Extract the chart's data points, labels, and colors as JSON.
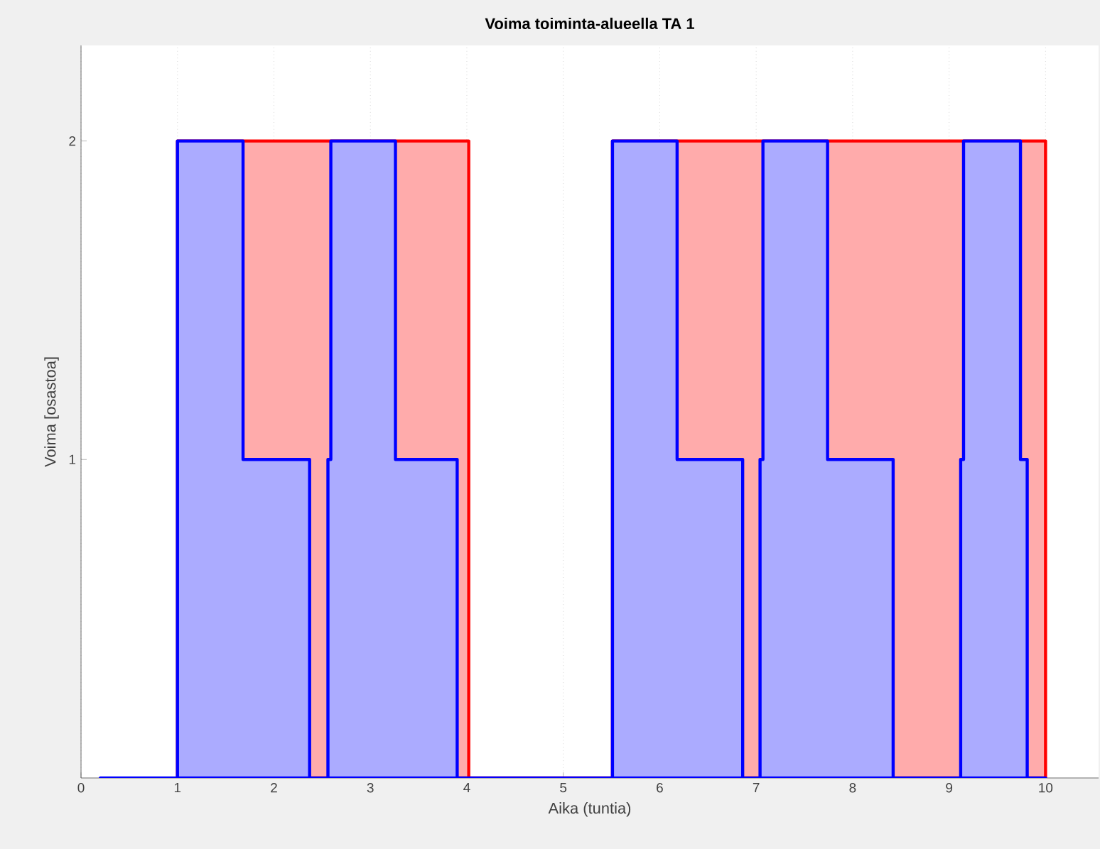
{
  "chart_data": {
    "type": "area",
    "title": "Voima toiminta-alueella TA 1",
    "xlabel": "Aika (tuntia)",
    "ylabel": "Voima [osastoa]",
    "xlim": [
      0,
      10.55
    ],
    "ylim": [
      0,
      2.3
    ],
    "xticks": [
      0,
      1,
      2,
      3,
      4,
      5,
      6,
      7,
      8,
      9,
      10
    ],
    "yticks": [
      1,
      2
    ],
    "grid": "x",
    "series": [
      {
        "color": "#ff0000",
        "x": [
          1.0,
          1.0,
          4.02,
          4.02,
          5.51,
          5.51,
          10.0,
          10.0
        ],
        "values": [
          0,
          2,
          2,
          0,
          0,
          2,
          2,
          0
        ]
      },
      {
        "color": "#0000ff",
        "x": [
          0.2,
          1.0,
          1.0,
          1.68,
          1.68,
          2.37,
          2.37,
          2.56,
          2.56,
          2.59,
          2.59,
          3.26,
          3.26,
          3.9,
          3.9,
          5.51,
          5.51,
          6.18,
          6.18,
          6.86,
          6.86,
          7.04,
          7.04,
          7.07,
          7.07,
          7.74,
          7.74,
          8.42,
          8.42,
          9.12,
          9.12,
          9.15,
          9.15,
          9.74,
          9.74,
          9.81,
          9.81,
          10.0
        ],
        "values": [
          0,
          0,
          2,
          2,
          1,
          1,
          0,
          0,
          1,
          1,
          2,
          2,
          1,
          1,
          0,
          0,
          2,
          2,
          1,
          1,
          0,
          0,
          1,
          1,
          2,
          2,
          1,
          1,
          0,
          0,
          1,
          1,
          2,
          2,
          1,
          1,
          0,
          0
        ]
      }
    ]
  }
}
